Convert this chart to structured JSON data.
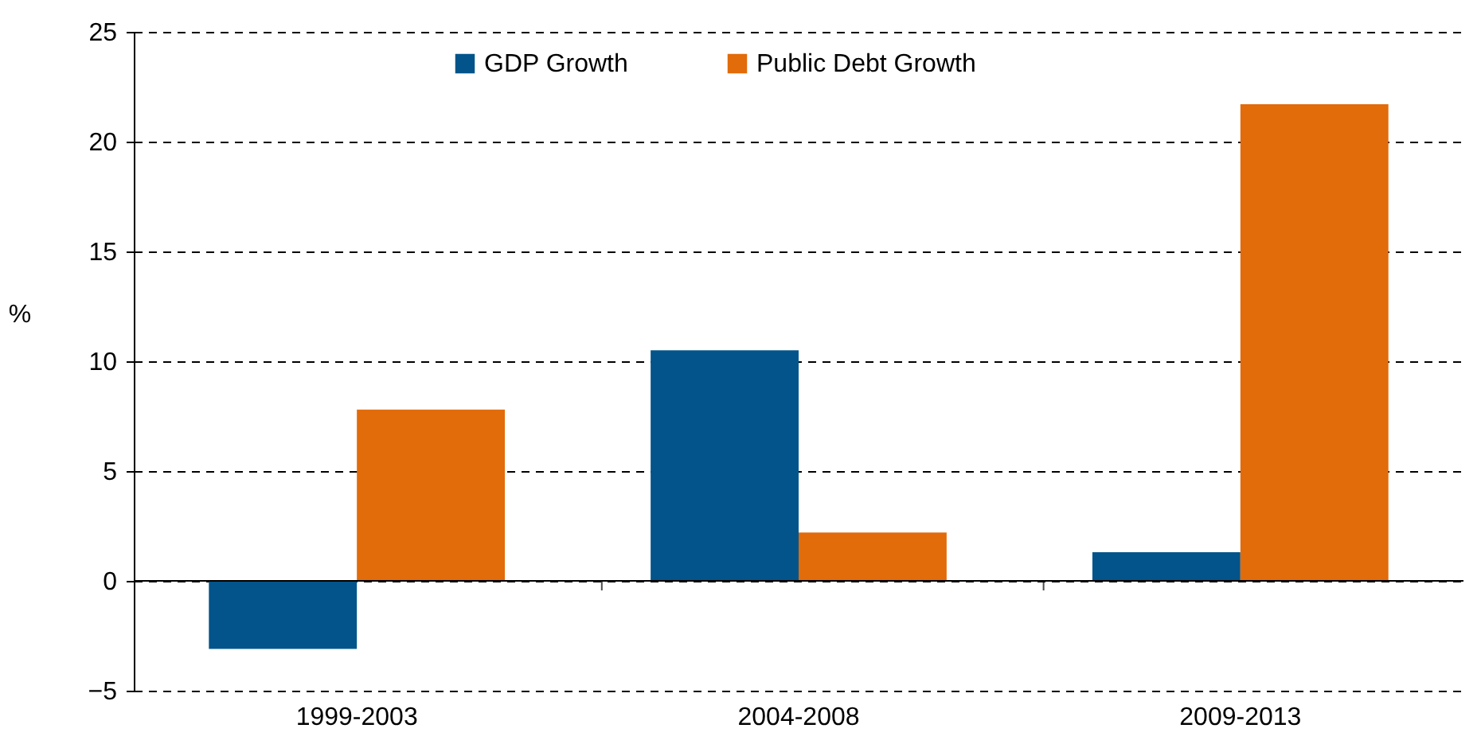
{
  "chart_data": {
    "type": "bar",
    "ylabel": "%",
    "categories": [
      "1999-2003",
      "2004-2008",
      "2009-2013"
    ],
    "series": [
      {
        "name": "GDP Growth",
        "color": "#02548a",
        "values": [
          -3.1,
          10.5,
          1.3
        ]
      },
      {
        "name": "Public Debt Growth",
        "color": "#e26b0a",
        "values": [
          7.8,
          2.2,
          21.7
        ]
      }
    ],
    "ylim": [
      -5,
      25
    ],
    "yticks": [
      -5,
      0,
      5,
      10,
      15,
      20,
      25
    ],
    "grid": "y",
    "legend": "top"
  }
}
